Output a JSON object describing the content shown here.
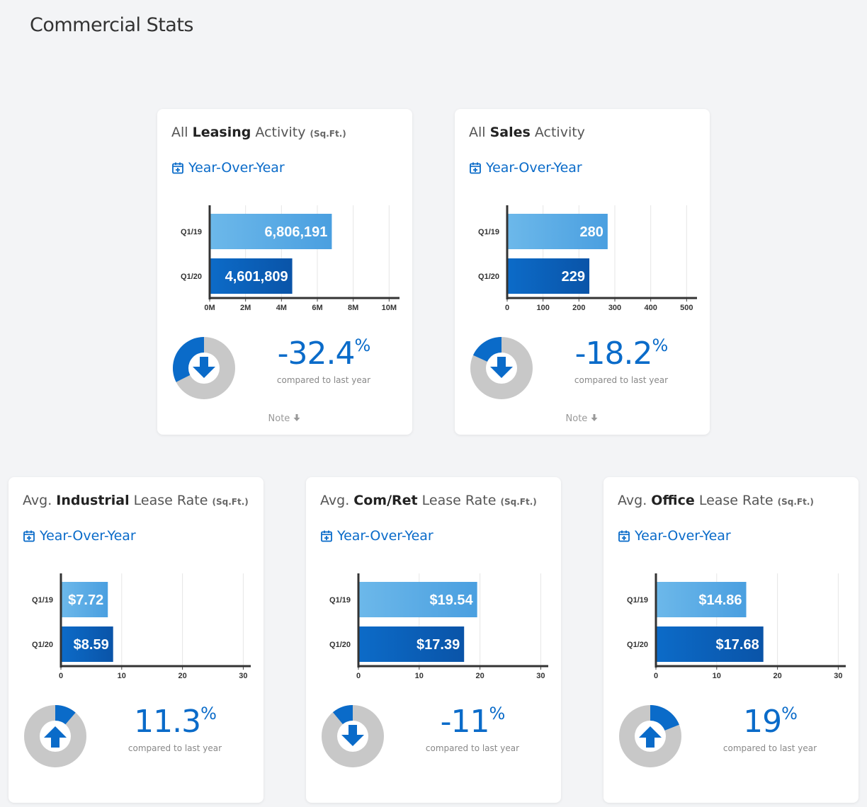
{
  "page": {
    "title": "Commercial Stats"
  },
  "labels": {
    "yoy": "Year-Over-Year",
    "compared": "compared to last year",
    "note": "Note"
  },
  "colors": {
    "accent": "#0a6bc9",
    "bar_light": "#5aaee6",
    "bar_dark": "#0b5fb8",
    "donut_bg": "#c8c8c8"
  },
  "cards": [
    {
      "prefix": "All",
      "bold": "Leasing",
      "suffix": "Activity",
      "unit": "(Sq.Ft.)",
      "pct_value": "-32.4",
      "pct_sign": "%",
      "direction": "down",
      "change_fraction": 0.324,
      "note": true
    },
    {
      "prefix": "All",
      "bold": "Sales",
      "suffix": "Activity",
      "unit": "",
      "pct_value": "-18.2",
      "pct_sign": "%",
      "direction": "down",
      "change_fraction": 0.182,
      "note": true
    },
    {
      "prefix": "Avg.",
      "bold": "Industrial",
      "suffix": "Lease Rate",
      "unit": "(Sq.Ft.)",
      "pct_value": "11.3",
      "pct_sign": "%",
      "direction": "up",
      "change_fraction": 0.113,
      "note": false
    },
    {
      "prefix": "Avg.",
      "bold": "Com/Ret",
      "suffix": "Lease Rate",
      "unit": "(Sq.Ft.)",
      "pct_value": "-11",
      "pct_sign": "%",
      "direction": "down",
      "change_fraction": 0.11,
      "note": false
    },
    {
      "prefix": "Avg.",
      "bold": "Office",
      "suffix": "Lease Rate",
      "unit": "(Sq.Ft.)",
      "pct_value": "19",
      "pct_sign": "%",
      "direction": "up",
      "change_fraction": 0.19,
      "note": false
    }
  ],
  "chart_data": [
    {
      "type": "bar",
      "orientation": "horizontal",
      "categories": [
        "Q1/19",
        "Q1/20"
      ],
      "values": [
        6806191,
        4601809
      ],
      "value_labels": [
        "6,806,191",
        "4,601,809"
      ],
      "xlim": [
        0,
        10500000
      ],
      "xticks": [
        0,
        2000000,
        4000000,
        6000000,
        8000000,
        10000000
      ],
      "xtick_labels": [
        "0M",
        "2M",
        "4M",
        "6M",
        "8M",
        "10M"
      ],
      "grid": true
    },
    {
      "type": "bar",
      "orientation": "horizontal",
      "categories": [
        "Q1/19",
        "Q1/20"
      ],
      "values": [
        280,
        229
      ],
      "value_labels": [
        "280",
        "229"
      ],
      "xlim": [
        0,
        525
      ],
      "xticks": [
        0,
        100,
        200,
        300,
        400,
        500
      ],
      "xtick_labels": [
        "0",
        "100",
        "200",
        "300",
        "400",
        "500"
      ],
      "grid": true
    },
    {
      "type": "bar",
      "orientation": "horizontal",
      "categories": [
        "Q1/19",
        "Q1/20"
      ],
      "values": [
        7.72,
        8.59
      ],
      "value_labels": [
        "$7.72",
        "$8.59"
      ],
      "xlim": [
        0,
        31
      ],
      "xticks": [
        0,
        10,
        20,
        30
      ],
      "xtick_labels": [
        "0",
        "10",
        "20",
        "30"
      ],
      "grid": true
    },
    {
      "type": "bar",
      "orientation": "horizontal",
      "categories": [
        "Q1/19",
        "Q1/20"
      ],
      "values": [
        19.54,
        17.39
      ],
      "value_labels": [
        "$19.54",
        "$17.39"
      ],
      "xlim": [
        0,
        31
      ],
      "xticks": [
        0,
        10,
        20,
        30
      ],
      "xtick_labels": [
        "0",
        "10",
        "20",
        "30"
      ],
      "grid": true
    },
    {
      "type": "bar",
      "orientation": "horizontal",
      "categories": [
        "Q1/19",
        "Q1/20"
      ],
      "values": [
        14.86,
        17.68
      ],
      "value_labels": [
        "$14.86",
        "$17.68"
      ],
      "xlim": [
        0,
        31
      ],
      "xticks": [
        0,
        10,
        20,
        30
      ],
      "xtick_labels": [
        "0",
        "10",
        "20",
        "30"
      ],
      "grid": true
    }
  ]
}
